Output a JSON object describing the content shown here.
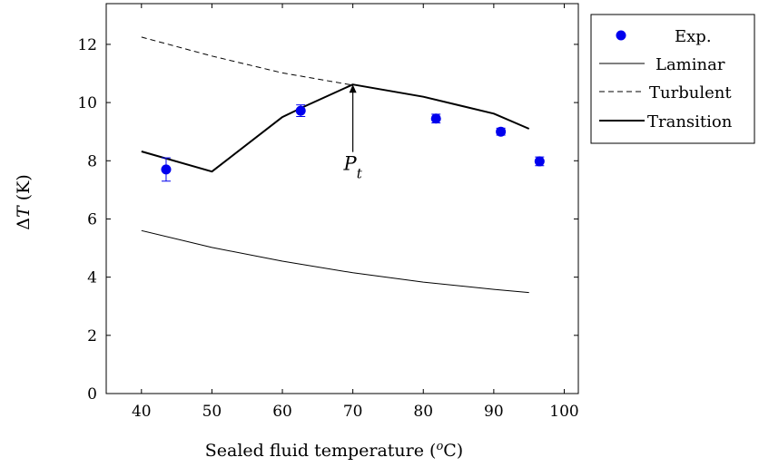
{
  "chart_data": {
    "type": "line",
    "xlabel": "Sealed fluid temperature (",
    "xlabel_sup": "o",
    "xlabel_unit": "C)",
    "ylabel_delta": "Δ",
    "ylabel_var": "T",
    "ylabel_unit": " (K)",
    "xlim": [
      35,
      102
    ],
    "ylim": [
      0,
      13.4
    ],
    "xticks": [
      "40",
      "50",
      "60",
      "70",
      "80",
      "90",
      "100"
    ],
    "yticks": [
      "0",
      "2",
      "4",
      "6",
      "8",
      "10",
      "12"
    ],
    "grid": false,
    "legend_position": "outside-top-right",
    "series": [
      {
        "name": "Exp.",
        "kind": "scatter",
        "color": "#0000ee",
        "points": [
          {
            "x": 43.5,
            "y": 7.7,
            "err": 0.4
          },
          {
            "x": 62.6,
            "y": 9.72,
            "err": 0.2
          },
          {
            "x": 81.8,
            "y": 9.45,
            "err": 0.15
          },
          {
            "x": 91,
            "y": 9.0,
            "err": 0.12
          },
          {
            "x": 96.5,
            "y": 7.98,
            "err": 0.15
          }
        ]
      },
      {
        "name": "Laminar",
        "kind": "line",
        "style": "solid-thin",
        "color": "#000000",
        "x": [
          40,
          50,
          60,
          70,
          80,
          90,
          95
        ],
        "y": [
          5.6,
          5.02,
          4.55,
          4.15,
          3.83,
          3.58,
          3.47
        ]
      },
      {
        "name": "Turbulent",
        "kind": "line",
        "style": "dashed",
        "color": "#000000",
        "x": [
          40,
          50,
          60,
          70
        ],
        "y": [
          12.25,
          11.6,
          11.02,
          10.6
        ]
      },
      {
        "name": "Transition",
        "kind": "line",
        "style": "solid-thick",
        "color": "#000000",
        "x": [
          40,
          50,
          60,
          63,
          70,
          80,
          90,
          95
        ],
        "y": [
          8.32,
          7.63,
          9.5,
          9.85,
          10.62,
          10.2,
          9.62,
          9.1
        ]
      }
    ],
    "annotations": [
      {
        "label_main": "P",
        "label_sub": "t",
        "x": 70,
        "y_from": 8.3,
        "y_to": 10.62
      }
    ]
  }
}
